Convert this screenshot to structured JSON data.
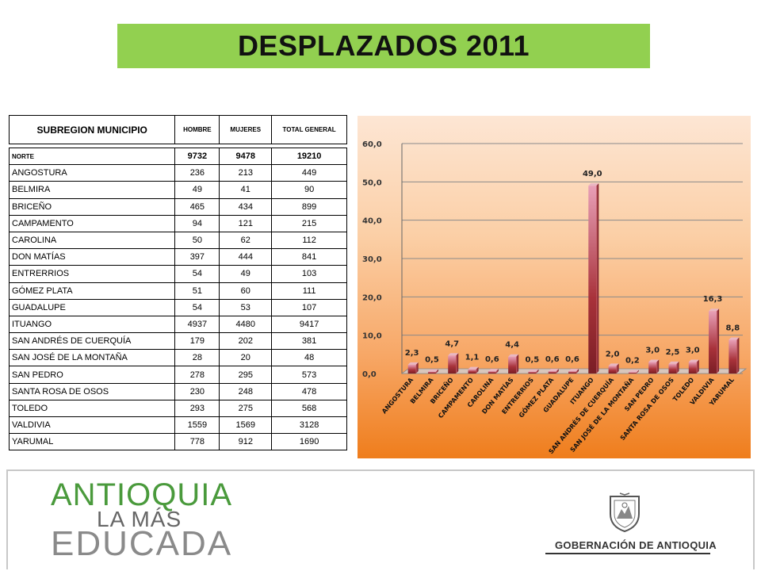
{
  "title": "DESPLAZADOS 2011",
  "table": {
    "headers": {
      "municipio": "SUBREGION MUNICIPIO",
      "hombre": "HOMBRE",
      "mujeres": "MUJERES",
      "total": "TOTAL GENERAL"
    },
    "total_row": {
      "name": "NORTE",
      "hombre": "9732",
      "mujeres": "9478",
      "total": "19210"
    },
    "rows": [
      {
        "name": "ANGOSTURA",
        "hombre": "236",
        "mujeres": "213",
        "total": "449"
      },
      {
        "name": "BELMIRA",
        "hombre": "49",
        "mujeres": "41",
        "total": "90"
      },
      {
        "name": "BRICEÑO",
        "hombre": "465",
        "mujeres": "434",
        "total": "899"
      },
      {
        "name": "CAMPAMENTO",
        "hombre": "94",
        "mujeres": "121",
        "total": "215"
      },
      {
        "name": "CAROLINA",
        "hombre": "50",
        "mujeres": "62",
        "total": "112"
      },
      {
        "name": "DON MATÍAS",
        "hombre": "397",
        "mujeres": "444",
        "total": "841"
      },
      {
        "name": "ENTRERRIOS",
        "hombre": "54",
        "mujeres": "49",
        "total": "103"
      },
      {
        "name": "GÓMEZ PLATA",
        "hombre": "51",
        "mujeres": "60",
        "total": "111"
      },
      {
        "name": "GUADALUPE",
        "hombre": "54",
        "mujeres": "53",
        "total": "107"
      },
      {
        "name": "ITUANGO",
        "hombre": "4937",
        "mujeres": "4480",
        "total": "9417"
      },
      {
        "name": "SAN ANDRÉS DE CUERQUÍA",
        "hombre": "179",
        "mujeres": "202",
        "total": "381"
      },
      {
        "name": "SAN JOSÉ DE LA MONTAÑA",
        "hombre": "28",
        "mujeres": "20",
        "total": "48"
      },
      {
        "name": "SAN PEDRO",
        "hombre": "278",
        "mujeres": "295",
        "total": "573"
      },
      {
        "name": "SANTA ROSA DE OSOS",
        "hombre": "230",
        "mujeres": "248",
        "total": "478"
      },
      {
        "name": "TOLEDO",
        "hombre": "293",
        "mujeres": "275",
        "total": "568"
      },
      {
        "name": "VALDIVIA",
        "hombre": "1559",
        "mujeres": "1569",
        "total": "3128"
      },
      {
        "name": "YARUMAL",
        "hombre": "778",
        "mujeres": "912",
        "total": "1690"
      }
    ]
  },
  "chart_data": {
    "type": "bar",
    "categories": [
      "ANGOSTURA",
      "BELMIRA",
      "BRICEÑO",
      "CAMPAMENTO",
      "CAROLINA",
      "DON MATÍAS",
      "ENTRERRIOS",
      "GÓMEZ PLATA",
      "GUADALUPE",
      "ITUANGO",
      "SAN ANDRÉS DE CUERQUÍA",
      "SAN JOSÉ DE LA MONTAÑA",
      "SAN PEDRO",
      "SANTA ROSA DE OSOS",
      "TOLEDO",
      "VALDIVIA",
      "YARUMAL"
    ],
    "values": [
      2.3,
      0.5,
      4.7,
      1.1,
      0.6,
      4.4,
      0.5,
      0.6,
      0.6,
      49.0,
      2.0,
      0.2,
      3.0,
      2.5,
      3.0,
      16.3,
      8.8
    ],
    "data_labels": [
      "2,3",
      "0,5",
      "4,7",
      "1,1",
      "0,6",
      "4,4",
      "0,5",
      "0,6",
      "0,6",
      "49,0",
      "2,0",
      "0,2",
      "3,0",
      "2,5",
      "3,0",
      "16,3",
      "8,8"
    ],
    "yticks": [
      "0,0",
      "10,0",
      "20,0",
      "30,0",
      "40,0",
      "50,0",
      "60,0"
    ],
    "ylim": [
      0,
      60
    ],
    "grid": true,
    "title": "",
    "xlabel": "",
    "ylabel": ""
  },
  "footer": {
    "logo_line1": "ANTIOQUIA",
    "logo_line2": "LA MÁS",
    "logo_line3": "EDUCADA",
    "gov": "GOBERNACIÓN DE ANTIOQUIA"
  },
  "colors": {
    "title_band": "#92d050",
    "bar": "#a8323a",
    "bar_highlight": "#e8a0b8",
    "logo_green": "#4a9a3c"
  }
}
